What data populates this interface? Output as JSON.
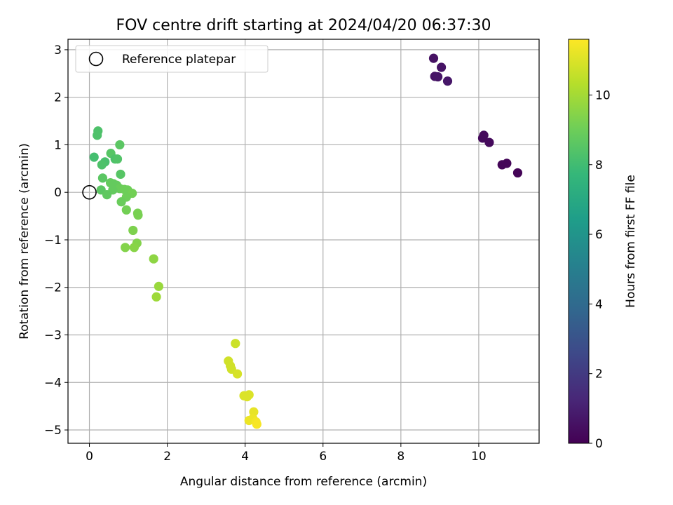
{
  "chart_data": {
    "type": "scatter",
    "title": "FOV centre drift starting at 2024/04/20 06:37:30",
    "xlabel": "Angular distance from reference (arcmin)",
    "ylabel": "Rotation from reference (arcmin)",
    "xlim": [
      -0.55,
      11.55
    ],
    "ylim": [
      -5.28,
      3.22
    ],
    "xticks": [
      0,
      2,
      4,
      6,
      8,
      10
    ],
    "yticks": [
      -5,
      -4,
      -3,
      -2,
      -1,
      0,
      1,
      2,
      3
    ],
    "grid": true,
    "legend": {
      "placement": "upper-left",
      "entries": [
        {
          "label": "Reference platepar",
          "marker": "open-circle"
        }
      ]
    },
    "reference_point": {
      "x": 0,
      "y": 0
    },
    "colorbar": {
      "label": "Hours from first FF file",
      "colormap": "viridis",
      "range": [
        0,
        11.6
      ],
      "ticks": [
        0,
        2,
        4,
        6,
        8,
        10
      ]
    },
    "colormap_stops": [
      "#440154",
      "#482878",
      "#3e4989",
      "#31688e",
      "#26828e",
      "#1f9e89",
      "#35b779",
      "#6ece58",
      "#b5de2b",
      "#fde725"
    ],
    "points": [
      {
        "x": 8.84,
        "y": 2.82,
        "c": 0.55
      },
      {
        "x": 9.04,
        "y": 2.63,
        "c": 0.6
      },
      {
        "x": 8.87,
        "y": 2.44,
        "c": 0.6
      },
      {
        "x": 8.95,
        "y": 2.43,
        "c": 0.65
      },
      {
        "x": 9.2,
        "y": 2.34,
        "c": 0.7
      },
      {
        "x": 10.13,
        "y": 1.2,
        "c": 0.3
      },
      {
        "x": 10.1,
        "y": 1.14,
        "c": 0.3
      },
      {
        "x": 10.27,
        "y": 1.05,
        "c": 0.3
      },
      {
        "x": 10.72,
        "y": 0.61,
        "c": 0.15
      },
      {
        "x": 10.6,
        "y": 0.58,
        "c": 0.15
      },
      {
        "x": 11.0,
        "y": 0.41,
        "c": 0.1
      },
      {
        "x": 0.22,
        "y": 1.29,
        "c": 8.3
      },
      {
        "x": 0.2,
        "y": 1.2,
        "c": 8.3
      },
      {
        "x": 0.12,
        "y": 0.74,
        "c": 8.1
      },
      {
        "x": 0.78,
        "y": 1.0,
        "c": 8.6
      },
      {
        "x": 0.55,
        "y": 0.82,
        "c": 8.5
      },
      {
        "x": 0.4,
        "y": 0.64,
        "c": 8.2
      },
      {
        "x": 0.32,
        "y": 0.58,
        "c": 8.3
      },
      {
        "x": 0.66,
        "y": 0.7,
        "c": 8.3
      },
      {
        "x": 0.72,
        "y": 0.7,
        "c": 8.4
      },
      {
        "x": 0.8,
        "y": 0.38,
        "c": 8.5
      },
      {
        "x": 0.34,
        "y": 0.3,
        "c": 8.6
      },
      {
        "x": 0.54,
        "y": 0.2,
        "c": 8.8
      },
      {
        "x": 0.62,
        "y": 0.18,
        "c": 8.8
      },
      {
        "x": 0.7,
        "y": 0.15,
        "c": 8.8
      },
      {
        "x": 0.78,
        "y": 0.08,
        "c": 8.9
      },
      {
        "x": 0.9,
        "y": 0.06,
        "c": 9.0
      },
      {
        "x": 0.98,
        "y": 0.05,
        "c": 9.0
      },
      {
        "x": 0.3,
        "y": 0.05,
        "c": 8.6
      },
      {
        "x": 0.6,
        "y": 0.05,
        "c": 8.8
      },
      {
        "x": 0.45,
        "y": -0.05,
        "c": 8.7
      },
      {
        "x": 1.1,
        "y": -0.02,
        "c": 9.1
      },
      {
        "x": 0.95,
        "y": -0.1,
        "c": 9.0
      },
      {
        "x": 0.82,
        "y": -0.2,
        "c": 8.9
      },
      {
        "x": 0.95,
        "y": -0.37,
        "c": 9.1
      },
      {
        "x": 1.24,
        "y": -0.44,
        "c": 9.2
      },
      {
        "x": 1.25,
        "y": -0.48,
        "c": 9.2
      },
      {
        "x": 1.12,
        "y": -0.8,
        "c": 9.3
      },
      {
        "x": 1.22,
        "y": -1.07,
        "c": 9.4
      },
      {
        "x": 1.15,
        "y": -1.16,
        "c": 9.5
      },
      {
        "x": 0.92,
        "y": -1.16,
        "c": 9.4
      },
      {
        "x": 1.65,
        "y": -1.4,
        "c": 9.6
      },
      {
        "x": 1.78,
        "y": -1.98,
        "c": 9.8
      },
      {
        "x": 1.72,
        "y": -2.2,
        "c": 9.9
      },
      {
        "x": 3.75,
        "y": -3.18,
        "c": 10.7
      },
      {
        "x": 3.57,
        "y": -3.55,
        "c": 10.8
      },
      {
        "x": 3.62,
        "y": -3.65,
        "c": 10.8
      },
      {
        "x": 3.65,
        "y": -3.72,
        "c": 10.8
      },
      {
        "x": 3.8,
        "y": -3.82,
        "c": 10.9
      },
      {
        "x": 3.97,
        "y": -4.28,
        "c": 11.0
      },
      {
        "x": 4.05,
        "y": -4.3,
        "c": 11.0
      },
      {
        "x": 4.1,
        "y": -4.26,
        "c": 11.0
      },
      {
        "x": 4.22,
        "y": -4.62,
        "c": 11.2
      },
      {
        "x": 4.2,
        "y": -4.76,
        "c": 11.3
      },
      {
        "x": 4.1,
        "y": -4.8,
        "c": 11.3
      },
      {
        "x": 4.28,
        "y": -4.83,
        "c": 11.4
      },
      {
        "x": 4.3,
        "y": -4.88,
        "c": 11.5
      }
    ]
  },
  "colors": {
    "grid": "#b0b0b0",
    "axes": "#000000",
    "legend_border": "#cccccc"
  }
}
